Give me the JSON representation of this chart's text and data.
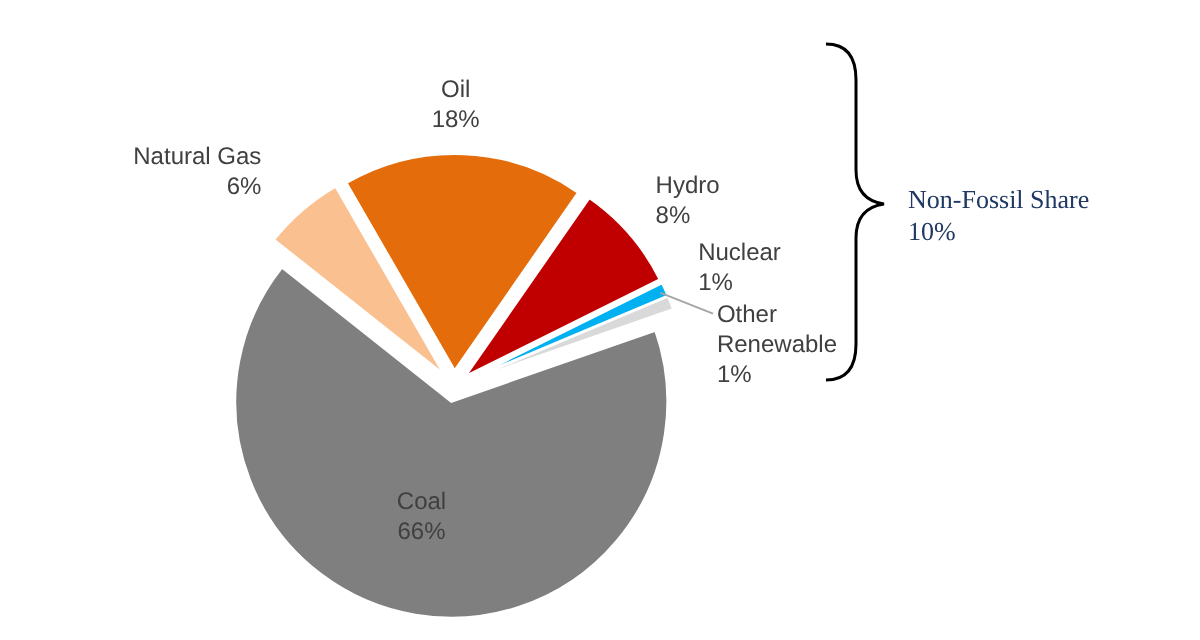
{
  "chart_data": {
    "type": "pie",
    "categories": [
      "Coal",
      "Natural Gas",
      "Oil",
      "Hydro",
      "Nuclear",
      "Other Renewable"
    ],
    "values": [
      66,
      6,
      18,
      8,
      1,
      1
    ],
    "colors": [
      "#7f7f7f",
      "#fac090",
      "#e46c0a",
      "#c00000",
      "#00b0f0",
      "#d9d9d9"
    ],
    "value_labels": [
      "66%",
      "6%",
      "18%",
      "8%",
      "1%",
      "1%"
    ],
    "annotations": [
      "Non-Fossil Share 10%"
    ]
  }
}
